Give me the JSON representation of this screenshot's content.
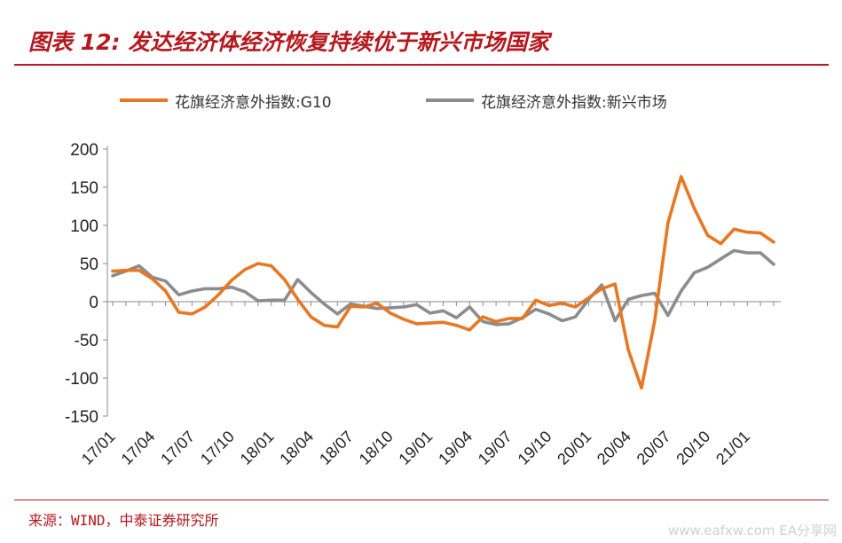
{
  "header": {
    "title": "图表 12: 发达经济体经济恢复持续优于新兴市场国家"
  },
  "footer": {
    "source": "来源：WIND，中泰证券研究所",
    "watermark": "www.eafxw.com  EA分享网"
  },
  "colors": {
    "accent": "#b5191e",
    "g10": "#e87722",
    "em": "#8c8c8c"
  },
  "chart_data": {
    "type": "line",
    "title": "",
    "xlabel": "",
    "ylabel": "",
    "ylim": [
      -150,
      200
    ],
    "yticks": [
      200,
      150,
      100,
      50,
      0,
      -50,
      -100,
      -150
    ],
    "legend_position": "top",
    "grid": false,
    "x": [
      "17/01",
      "17/02",
      "17/03",
      "17/04",
      "17/05",
      "17/06",
      "17/07",
      "17/08",
      "17/09",
      "17/10",
      "17/11",
      "17/12",
      "18/01",
      "18/02",
      "18/03",
      "18/04",
      "18/05",
      "18/06",
      "18/07",
      "18/08",
      "18/09",
      "18/10",
      "18/11",
      "18/12",
      "19/01",
      "19/02",
      "19/03",
      "19/04",
      "19/05",
      "19/06",
      "19/07",
      "19/08",
      "19/09",
      "19/10",
      "19/11",
      "19/12",
      "20/01",
      "20/02",
      "20/03",
      "20/04",
      "20/05",
      "20/06",
      "20/07",
      "20/08",
      "20/09",
      "20/10",
      "20/11",
      "20/12",
      "21/01",
      "21/02",
      "21/03"
    ],
    "x_tick_labels": [
      "17/01",
      "17/04",
      "17/07",
      "17/10",
      "18/01",
      "18/04",
      "18/07",
      "18/10",
      "19/01",
      "19/04",
      "19/07",
      "19/10",
      "20/01",
      "20/04",
      "20/07",
      "20/10",
      "21/01"
    ],
    "series": [
      {
        "name": "花旗经济意外指数:G10",
        "color": "#e87722",
        "values": [
          40,
          41,
          41,
          30,
          14,
          -14,
          -16,
          -7,
          9,
          28,
          42,
          50,
          47,
          29,
          3,
          -20,
          -31,
          -33,
          -6,
          -7,
          -2,
          -15,
          -23,
          -29,
          -28,
          -27,
          -31,
          -37,
          -20,
          -26,
          -22,
          -22,
          2,
          -5,
          -2,
          -7,
          5,
          17,
          23,
          -63,
          -113,
          -25,
          103,
          164,
          122,
          87,
          76,
          95,
          91,
          90,
          78
        ]
      },
      {
        "name": "花旗经济意外指数:新兴市场",
        "color": "#8c8c8c",
        "values": [
          34,
          40,
          47,
          32,
          27,
          9,
          14,
          17,
          17,
          19,
          13,
          1,
          2,
          2,
          29,
          12,
          -3,
          -16,
          -3,
          -6,
          -9,
          -8,
          -7,
          -4,
          -15,
          -12,
          -21,
          -7,
          -26,
          -30,
          -29,
          -21,
          -10,
          -16,
          -25,
          -20,
          3,
          22,
          -25,
          3,
          8,
          11,
          -18,
          14,
          38,
          45,
          56,
          67,
          64,
          64,
          49
        ]
      }
    ]
  }
}
